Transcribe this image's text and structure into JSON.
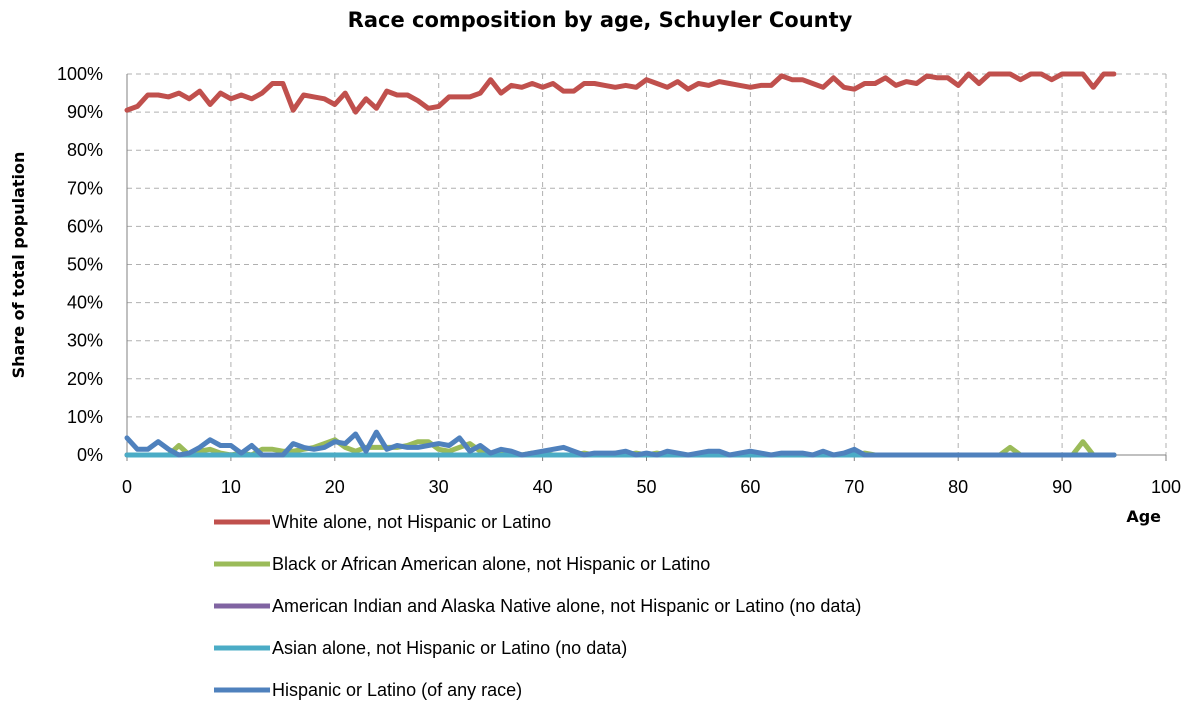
{
  "chart_data": {
    "type": "line",
    "title": "Race composition by age, Schuyler County",
    "xlabel": "Age",
    "ylabel": "Share of total population",
    "xlim": [
      0,
      100
    ],
    "ylim": [
      0,
      100
    ],
    "x_ticks": [
      "0",
      "10",
      "20",
      "30",
      "40",
      "50",
      "60",
      "70",
      "80",
      "90",
      "100"
    ],
    "y_ticks": [
      "0%",
      "10%",
      "20%",
      "30%",
      "40%",
      "50%",
      "60%",
      "70%",
      "80%",
      "90%",
      "100%"
    ],
    "grid": true,
    "legend_position": "bottom",
    "series": [
      {
        "name": "White alone, not Hispanic or Latino",
        "color": "#c0504d",
        "x": [
          0,
          1,
          2,
          3,
          4,
          5,
          6,
          7,
          8,
          9,
          10,
          11,
          12,
          13,
          14,
          15,
          16,
          17,
          18,
          19,
          20,
          21,
          22,
          23,
          24,
          25,
          26,
          27,
          28,
          29,
          30,
          31,
          32,
          33,
          34,
          35,
          36,
          37,
          38,
          39,
          40,
          41,
          42,
          43,
          44,
          45,
          46,
          47,
          48,
          49,
          50,
          51,
          52,
          53,
          54,
          55,
          56,
          57,
          58,
          59,
          60,
          61,
          62,
          63,
          64,
          65,
          66,
          67,
          68,
          69,
          70,
          71,
          72,
          73,
          74,
          75,
          76,
          77,
          78,
          79,
          80,
          81,
          82,
          83,
          84,
          85,
          86,
          87,
          88,
          89,
          90,
          91,
          92,
          93,
          94,
          95
        ],
        "values": [
          90.5,
          91.5,
          94.5,
          94.5,
          94,
          95,
          93.5,
          95.5,
          92,
          95,
          93.5,
          94.5,
          93.5,
          95,
          97.5,
          97.5,
          90.5,
          94.5,
          94,
          93.5,
          92,
          95,
          90,
          93.5,
          91,
          95.5,
          94.5,
          94.5,
          93,
          91,
          91.5,
          94,
          94,
          94,
          95,
          98.5,
          95,
          97,
          96.5,
          97.5,
          96.5,
          97.5,
          95.5,
          95.5,
          97.5,
          97.5,
          97,
          96.5,
          97,
          96.5,
          98.5,
          97.5,
          96.5,
          98,
          96,
          97.5,
          97,
          98,
          97.5,
          97,
          96.5,
          97,
          97,
          99.5,
          98.5,
          98.5,
          97.5,
          96.5,
          99,
          96.5,
          96,
          97.5,
          97.5,
          99,
          97,
          98,
          97.5,
          99.5,
          99,
          99,
          97,
          100,
          97.5,
          100,
          100,
          100,
          98.5,
          100,
          100,
          98.5,
          100,
          100,
          100,
          96.5,
          100,
          100
        ]
      },
      {
        "name": "Black or African American alone, not Hispanic or Latino",
        "color": "#9bbb59",
        "x": [
          0,
          1,
          2,
          3,
          4,
          5,
          6,
          7,
          8,
          9,
          10,
          11,
          12,
          13,
          14,
          15,
          16,
          17,
          18,
          19,
          20,
          21,
          22,
          23,
          24,
          25,
          26,
          27,
          28,
          29,
          30,
          31,
          32,
          33,
          34,
          35,
          36,
          37,
          38,
          39,
          40,
          41,
          42,
          43,
          44,
          45,
          46,
          47,
          48,
          49,
          50,
          51,
          52,
          53,
          54,
          55,
          56,
          57,
          58,
          59,
          60,
          61,
          62,
          63,
          64,
          65,
          66,
          67,
          68,
          69,
          70,
          71,
          72,
          73,
          74,
          75,
          76,
          77,
          78,
          79,
          80,
          81,
          82,
          83,
          84,
          85,
          86,
          87,
          88,
          89,
          90,
          91,
          92,
          93,
          94,
          95
        ],
        "values": [
          0,
          0,
          0,
          0,
          0,
          2.5,
          0,
          1,
          1.5,
          0.5,
          0,
          0.5,
          0,
          1.5,
          1.5,
          1,
          1,
          1.5,
          2,
          3,
          4,
          2,
          1,
          2,
          2,
          2,
          2,
          2.5,
          3.5,
          3.5,
          1.5,
          1,
          2,
          3,
          1,
          0.5,
          1,
          0.5,
          0,
          0.5,
          0.5,
          0,
          0,
          0,
          0.5,
          0,
          0,
          0.5,
          0,
          0.5,
          0,
          0.5,
          0,
          0,
          0,
          0,
          0,
          0,
          0,
          0,
          0,
          0,
          0,
          0,
          0,
          0,
          0,
          0,
          0,
          0,
          0,
          0.5,
          0,
          0,
          0,
          0,
          0,
          0,
          0,
          0,
          0,
          0,
          0,
          0,
          0,
          2,
          0,
          0,
          0,
          0,
          0,
          0,
          3.5,
          0,
          0,
          0
        ]
      },
      {
        "name": "American Indian and Alaska Native alone, not Hispanic or Latino (no data)",
        "color": "#8064a2",
        "x": [
          0,
          95
        ],
        "values": [
          0,
          0
        ]
      },
      {
        "name": "Asian alone, not Hispanic or Latino (no data)",
        "color": "#4bacc6",
        "x": [
          0,
          95
        ],
        "values": [
          0,
          0
        ]
      },
      {
        "name": "Hispanic or Latino (of any race)",
        "color": "#4f81bd",
        "x": [
          0,
          1,
          2,
          3,
          4,
          5,
          6,
          7,
          8,
          9,
          10,
          11,
          12,
          13,
          14,
          15,
          16,
          17,
          18,
          19,
          20,
          21,
          22,
          23,
          24,
          25,
          26,
          27,
          28,
          29,
          30,
          31,
          32,
          33,
          34,
          35,
          36,
          37,
          38,
          39,
          40,
          41,
          42,
          43,
          44,
          45,
          46,
          47,
          48,
          49,
          50,
          51,
          52,
          53,
          54,
          55,
          56,
          57,
          58,
          59,
          60,
          61,
          62,
          63,
          64,
          65,
          66,
          67,
          68,
          69,
          70,
          71,
          72,
          73,
          74,
          75,
          76,
          77,
          78,
          79,
          80,
          81,
          82,
          83,
          84,
          85,
          86,
          87,
          88,
          89,
          90,
          91,
          92,
          93,
          94,
          95
        ],
        "values": [
          4.5,
          1.5,
          1.5,
          3.5,
          1.5,
          0,
          0.5,
          2,
          4,
          2.5,
          2.5,
          0.5,
          2.5,
          0,
          0,
          0,
          3,
          2,
          1.5,
          2,
          3.5,
          3,
          5.5,
          1,
          6,
          1.5,
          2.5,
          2,
          2,
          2.5,
          3,
          2.5,
          4.5,
          1,
          2.5,
          0.5,
          1.5,
          1,
          0,
          0.5,
          1,
          1.5,
          2,
          1,
          0,
          0.5,
          0.5,
          0.5,
          1,
          0,
          0.5,
          0,
          1,
          0.5,
          0,
          0.5,
          1,
          1,
          0,
          0.5,
          1,
          0.5,
          0,
          0.5,
          0.5,
          0.5,
          0,
          1,
          0,
          0.5,
          1.5,
          0,
          0,
          0,
          0,
          0,
          0,
          0,
          0,
          0,
          0,
          0,
          0,
          0,
          0,
          0,
          0,
          0,
          0,
          0,
          0,
          0,
          0,
          0,
          0,
          0
        ]
      }
    ]
  }
}
